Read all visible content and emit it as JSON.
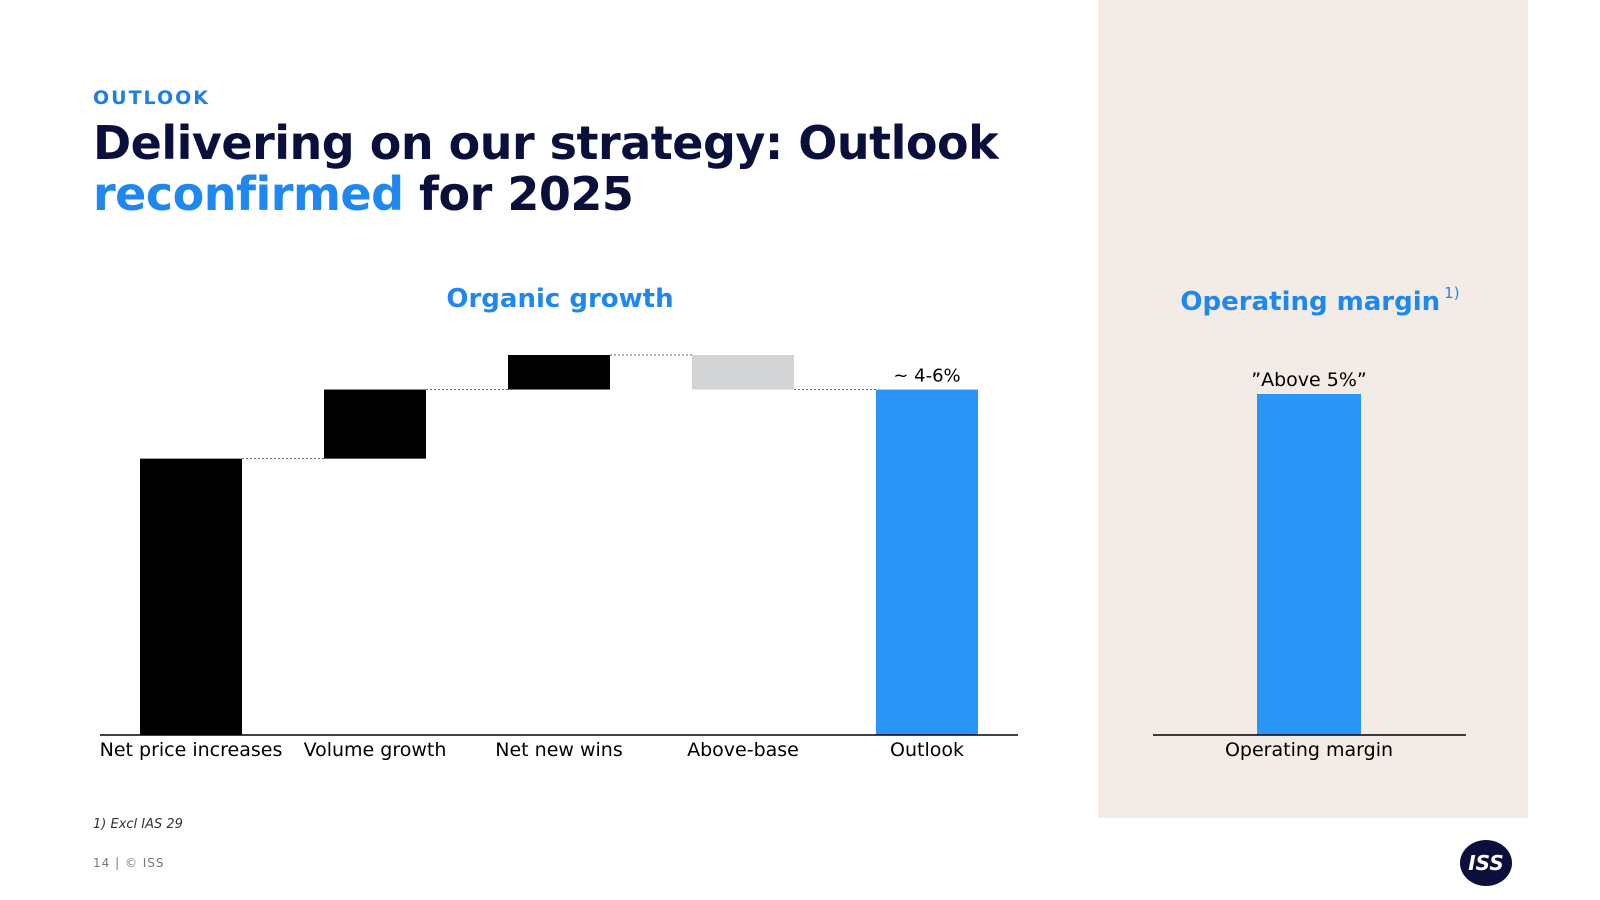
{
  "header": {
    "kicker": "OUTLOOK",
    "title_line1": "Delivering on our strategy: Outlook",
    "title_accent": "reconfirmed",
    "title_rest": " for 2025"
  },
  "chart_data": [
    {
      "type": "bar",
      "subtype": "waterfall",
      "title": "Organic growth",
      "categories": [
        "Net price increases",
        "Volume growth",
        "Net new wins",
        "Above-base",
        "Outlook"
      ],
      "bars": [
        {
          "category": "Net price increases",
          "base": 0,
          "top": 8.0,
          "kind": "increase",
          "color": "#000000"
        },
        {
          "category": "Volume growth",
          "base": 8.0,
          "top": 10.0,
          "kind": "increase",
          "color": "#000000"
        },
        {
          "category": "Net new wins",
          "base": 10.0,
          "top": 11.0,
          "kind": "increase",
          "color": "#000000"
        },
        {
          "category": "Above-base",
          "base": 10.0,
          "top": 11.0,
          "kind": "decrease",
          "color": "#d3d4d6"
        },
        {
          "category": "Outlook",
          "base": 0,
          "top": 10.0,
          "kind": "total",
          "color": "#2895f7",
          "label": "~ 4-6%"
        }
      ],
      "ylim": [
        0,
        11.0
      ],
      "grid": false,
      "legend": "none"
    },
    {
      "type": "bar",
      "title": "Operating margin",
      "title_footnote_marker": "1)",
      "categories": [
        "Operating margin"
      ],
      "values": [
        1
      ],
      "data_label": "”Above 5%”",
      "color": "#2895f7",
      "ylim": [
        0,
        1
      ],
      "grid": false,
      "legend": "none"
    }
  ],
  "footer": {
    "footnote": "1) Excl IAS 29",
    "page": "14 |   © ISS",
    "logo_text": "ISS"
  }
}
